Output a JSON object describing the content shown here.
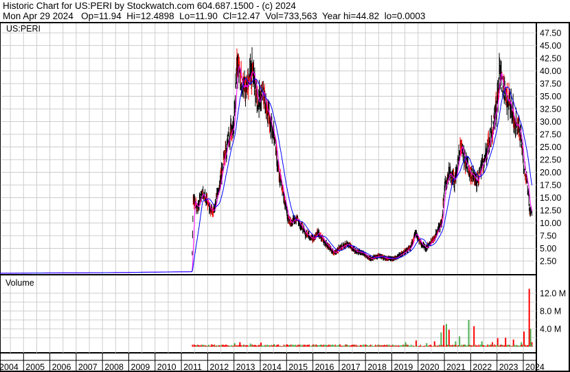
{
  "header": {
    "title": "Historic Chart for US:PERI by Stockwatch.com 604.687.1500 - (c) 2024",
    "quote": "Mon Apr 29 2024   Op=11.94  Hi=12.4898  Lo=11.90  Cl=12.47  Vol=733,563  Year hi=44.82  lo=0.0003"
  },
  "chart_data": [
    {
      "type": "line",
      "symbol": "US:PERI",
      "ylim": [
        0,
        48.75
      ],
      "y_ticks": [
        "47.50",
        "45.00",
        "42.50",
        "40.00",
        "37.50",
        "35.00",
        "32.50",
        "30.00",
        "27.50",
        "25.00",
        "22.50",
        "20.00",
        "17.50",
        "15.00",
        "12.50",
        "10.00",
        "7.50",
        "5.00",
        "2.50"
      ],
      "colors": {
        "price": "#000000",
        "ma_short": "#ff00ff",
        "ma_long": "#0000ff",
        "down": "#ff0000"
      },
      "close": [
        [
          2004.0,
          0.1
        ],
        [
          2008.0,
          0.2
        ],
        [
          2011.4,
          0.4
        ],
        [
          2011.45,
          15
        ],
        [
          2011.6,
          13
        ],
        [
          2011.8,
          16
        ],
        [
          2012.0,
          14
        ],
        [
          2012.2,
          12
        ],
        [
          2012.4,
          16
        ],
        [
          2012.6,
          22
        ],
        [
          2012.8,
          27
        ],
        [
          2013.0,
          30
        ],
        [
          2013.1,
          42
        ],
        [
          2013.3,
          38
        ],
        [
          2013.5,
          36
        ],
        [
          2013.7,
          40
        ],
        [
          2013.9,
          34
        ],
        [
          2014.1,
          36
        ],
        [
          2014.3,
          32
        ],
        [
          2014.5,
          28
        ],
        [
          2014.7,
          20
        ],
        [
          2014.9,
          15
        ],
        [
          2015.1,
          10
        ],
        [
          2015.4,
          11
        ],
        [
          2015.7,
          8
        ],
        [
          2016.0,
          7
        ],
        [
          2016.2,
          8
        ],
        [
          2016.5,
          6
        ],
        [
          2016.8,
          4
        ],
        [
          2017.0,
          5
        ],
        [
          2017.3,
          6
        ],
        [
          2017.6,
          4.5
        ],
        [
          2017.9,
          4
        ],
        [
          2018.2,
          3
        ],
        [
          2018.5,
          3.5
        ],
        [
          2018.8,
          3
        ],
        [
          2019.1,
          3
        ],
        [
          2019.4,
          4
        ],
        [
          2019.7,
          5
        ],
        [
          2019.9,
          8
        ],
        [
          2020.1,
          6
        ],
        [
          2020.3,
          5
        ],
        [
          2020.6,
          7
        ],
        [
          2020.9,
          10
        ],
        [
          2021.0,
          17
        ],
        [
          2021.2,
          20
        ],
        [
          2021.4,
          18
        ],
        [
          2021.6,
          25
        ],
        [
          2021.8,
          22
        ],
        [
          2022.0,
          20
        ],
        [
          2022.2,
          18
        ],
        [
          2022.5,
          22
        ],
        [
          2022.8,
          28
        ],
        [
          2023.0,
          33
        ],
        [
          2023.1,
          40
        ],
        [
          2023.3,
          35
        ],
        [
          2023.5,
          34
        ],
        [
          2023.7,
          30
        ],
        [
          2023.9,
          27
        ],
        [
          2024.0,
          22
        ],
        [
          2024.15,
          18
        ],
        [
          2024.25,
          12
        ],
        [
          2024.33,
          12.47
        ]
      ]
    },
    {
      "type": "bar",
      "title": "Volume",
      "ylim": [
        0,
        14
      ],
      "unit": "M",
      "y_ticks": [
        "12.0 M",
        "8.0 M",
        "4.0 M"
      ],
      "colors": {
        "up": "#4caf50",
        "down": "#ff0000"
      },
      "volume": [
        [
          2012.0,
          0.3,
          "down"
        ],
        [
          2012.5,
          0.4,
          "up"
        ],
        [
          2013.0,
          0.8,
          "up"
        ],
        [
          2013.2,
          1.0,
          "down"
        ],
        [
          2013.6,
          0.7,
          "up"
        ],
        [
          2014.0,
          0.9,
          "down"
        ],
        [
          2014.5,
          0.6,
          "up"
        ],
        [
          2015.0,
          0.5,
          "down"
        ],
        [
          2015.5,
          0.4,
          "up"
        ],
        [
          2016.0,
          0.5,
          "down"
        ],
        [
          2016.5,
          0.4,
          "up"
        ],
        [
          2017.0,
          0.5,
          "down"
        ],
        [
          2017.5,
          0.4,
          "up"
        ],
        [
          2018.0,
          0.3,
          "down"
        ],
        [
          2018.5,
          0.4,
          "up"
        ],
        [
          2019.0,
          0.4,
          "down"
        ],
        [
          2019.5,
          1.0,
          "up"
        ],
        [
          2019.9,
          1.4,
          "down"
        ],
        [
          2020.3,
          0.8,
          "up"
        ],
        [
          2020.6,
          1.2,
          "down"
        ],
        [
          2020.85,
          3.2,
          "up"
        ],
        [
          2020.95,
          4.8,
          "down"
        ],
        [
          2021.05,
          5.1,
          "up"
        ],
        [
          2021.15,
          3.8,
          "down"
        ],
        [
          2021.4,
          1.2,
          "up"
        ],
        [
          2021.55,
          2.3,
          "up"
        ],
        [
          2021.9,
          6.0,
          "up"
        ],
        [
          2022.1,
          4.6,
          "down"
        ],
        [
          2022.4,
          1.2,
          "up"
        ],
        [
          2022.8,
          1.0,
          "down"
        ],
        [
          2023.0,
          1.9,
          "down"
        ],
        [
          2023.3,
          2.0,
          "down"
        ],
        [
          2023.6,
          1.6,
          "down"
        ],
        [
          2023.9,
          1.0,
          "up"
        ],
        [
          2024.0,
          3.4,
          "down"
        ],
        [
          2024.2,
          13.0,
          "down"
        ],
        [
          2024.25,
          4.0,
          "up"
        ],
        [
          2024.3,
          1.0,
          "down"
        ]
      ]
    },
    {
      "type": "axis",
      "x_ticks": [
        "2004",
        "2005",
        "2006",
        "2007",
        "2008",
        "2009",
        "2010",
        "2011",
        "2012",
        "2013",
        "2014",
        "2015",
        "2016",
        "2017",
        "2018",
        "2019",
        "2020",
        "2021",
        "2022",
        "2023",
        "2024"
      ]
    }
  ]
}
